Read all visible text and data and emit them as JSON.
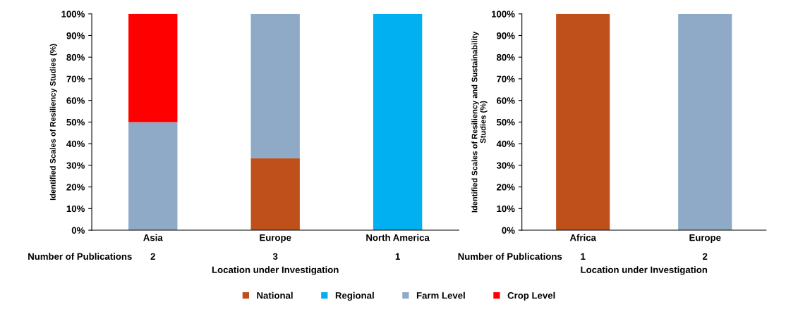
{
  "chart_data": [
    {
      "type": "bar",
      "stacked": true,
      "categories": [
        "Asia",
        "Europe",
        "North America"
      ],
      "ylabel": "Identified Scales of Resiliency Studies (%)",
      "xlabel": "Location under Investigation",
      "ylim": [
        0,
        100
      ],
      "yticks": [
        {
          "value": 0,
          "label": "0%"
        },
        {
          "value": 10,
          "label": "10%"
        },
        {
          "value": 20,
          "label": "20%"
        },
        {
          "value": 30,
          "label": "30%"
        },
        {
          "value": 40,
          "label": "40%"
        },
        {
          "value": 50,
          "label": "50%"
        },
        {
          "value": 60,
          "label": "60%"
        },
        {
          "value": 70,
          "label": "70%"
        },
        {
          "value": 80,
          "label": "80%"
        },
        {
          "value": 90,
          "label": "90%"
        },
        {
          "value": 100,
          "label": "100%"
        }
      ],
      "annotations": [
        "Number of Publications",
        "2",
        "3",
        "1"
      ],
      "legend": "bottom",
      "grid": false,
      "series": [
        {
          "name": "National",
          "color": "#c0501b",
          "values": [
            null,
            33.3,
            null
          ]
        },
        {
          "name": "Regional",
          "color": "#00b0f0",
          "values": [
            null,
            null,
            100
          ]
        },
        {
          "name": "Farm Level",
          "color": "#8eaac6",
          "values": [
            50,
            66.7,
            null
          ]
        },
        {
          "name": "Crop Level",
          "color": "#ff0000",
          "values": [
            50,
            null,
            null
          ]
        }
      ]
    },
    {
      "type": "bar",
      "stacked": true,
      "categories": [
        "Africa",
        "Europe"
      ],
      "ylabel": "Identified Scales of Resiliency and Sustainability\nStudies (%)",
      "xlabel": "Location under Investigation",
      "ylim": [
        0,
        100
      ],
      "yticks": [
        {
          "value": 0,
          "label": "0%"
        },
        {
          "value": 10,
          "label": "10%"
        },
        {
          "value": 20,
          "label": "20%"
        },
        {
          "value": 30,
          "label": "30%"
        },
        {
          "value": 40,
          "label": "40%"
        },
        {
          "value": 50,
          "label": "50%"
        },
        {
          "value": 60,
          "label": "60%"
        },
        {
          "value": 70,
          "label": "70%"
        },
        {
          "value": 80,
          "label": "80%"
        },
        {
          "value": 90,
          "label": "90%"
        },
        {
          "value": 100,
          "label": "100%"
        }
      ],
      "annotations": [
        "Number of Publications",
        "1",
        "2"
      ],
      "grid": false,
      "series": [
        {
          "color": "#c0501b",
          "values": [
            100,
            null
          ]
        },
        {
          "color": "#8eaac6",
          "values": [
            null,
            100
          ]
        }
      ]
    }
  ]
}
